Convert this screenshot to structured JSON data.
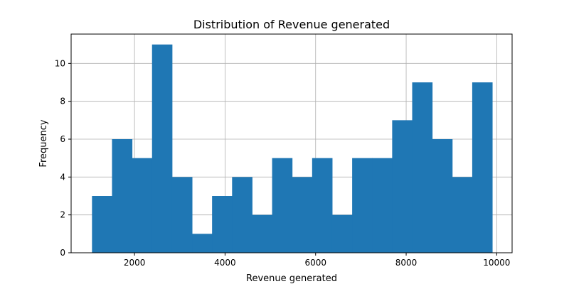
{
  "chart_data": {
    "type": "bar",
    "title": "Distribution of Revenue generated",
    "xlabel": "Revenue generated",
    "ylabel": "Frequency",
    "bar_color": "#1f77b4",
    "grid": true,
    "bin_width": 442,
    "bin_edges": [
      1061,
      1503,
      1945,
      2387,
      2829,
      3271,
      3713,
      4155,
      4597,
      5039,
      5481,
      5923,
      6365,
      6807,
      7249,
      7691,
      8133,
      8575,
      9017,
      9459,
      9901
    ],
    "values": [
      3,
      6,
      5,
      11,
      4,
      1,
      3,
      4,
      2,
      5,
      4,
      5,
      2,
      5,
      5,
      7,
      9,
      6,
      4,
      9
    ],
    "xlim": [
      600,
      10340
    ],
    "ylim": [
      0,
      11.55
    ],
    "xticks": [
      2000,
      4000,
      6000,
      8000,
      10000
    ],
    "yticks": [
      0,
      2,
      4,
      6,
      8,
      10
    ]
  }
}
